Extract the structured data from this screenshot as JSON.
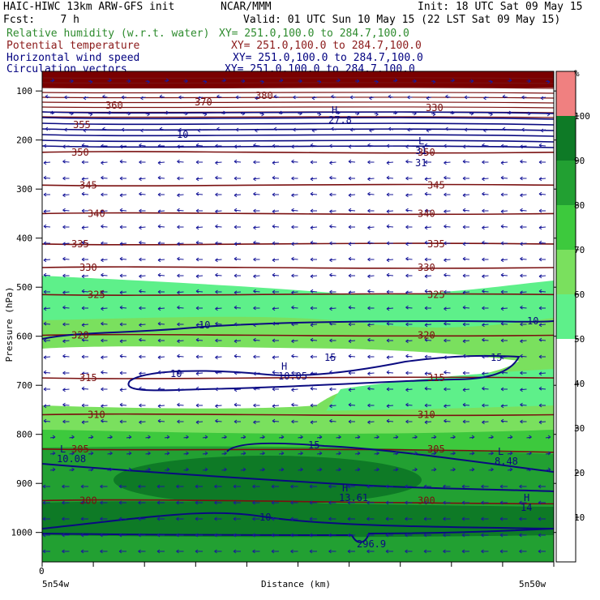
{
  "header": {
    "model": "HAIC-HIWC 13km ARW-GFS init",
    "center": "NCAR/MMM",
    "init": "Init: 18 UTC Sat 09 May 15",
    "fcst": "Fcst:    7 h",
    "valid": "Valid: 01 UTC Sun 10 May 15 (22 LST Sat 09 May 15)",
    "fields": [
      {
        "name": "Relative humidity (w.r.t. water)",
        "xy": "XY= 251.0,100.0 to 284.7,100.0",
        "color": "#2e8b2e"
      },
      {
        "name": "Potential temperature",
        "xy": "XY= 251.0,100.0 to 284.7,100.0",
        "color": "#8b1a1a"
      },
      {
        "name": "Horizontal wind speed",
        "xy": "XY= 251.0,100.0 to 284.7,100.0",
        "color": "#000080"
      },
      {
        "name": "Circulation vectors",
        "xy": "XY= 251.0,100.0 to 284.7,100.0",
        "color": "#000080"
      }
    ]
  },
  "chart_data": {
    "type": "heatmap",
    "xlabel": "Distance (km)",
    "ylabel": "Pressure (hPa)",
    "x_tick_zero": "0",
    "x_left_label": "5n54w",
    "x_right_label": "5n50w",
    "y_ticks": [
      100,
      200,
      300,
      400,
      500,
      600,
      700,
      800,
      900,
      1000
    ],
    "y_range": [
      60,
      1060
    ],
    "colorbar": {
      "unit": "%",
      "levels": [
        10,
        20,
        30,
        40,
        50,
        60,
        70,
        80,
        90,
        100
      ],
      "bands": [
        {
          "from": 50,
          "to": 60,
          "color": "#5ef08a"
        },
        {
          "from": 60,
          "to": 70,
          "color": "#7ae05e"
        },
        {
          "from": 70,
          "to": 80,
          "color": "#3dc93d"
        },
        {
          "from": 80,
          "to": 90,
          "color": "#22a032"
        },
        {
          "from": 90,
          "to": 100,
          "color": "#0e7a26"
        },
        {
          "from": 100,
          "to": 110,
          "color": "#f08080"
        }
      ]
    },
    "theta_contours": [
      {
        "label": "350",
        "p": 225
      },
      {
        "label": "345",
        "p": 292
      },
      {
        "label": "340",
        "p": 350
      },
      {
        "label": "335",
        "p": 412
      },
      {
        "label": "330",
        "p": 460
      },
      {
        "label": "325",
        "p": 515
      },
      {
        "label": "320",
        "p": 598
      },
      {
        "label": "315",
        "p": 685
      },
      {
        "label": "310",
        "p": 760
      },
      {
        "label": "305",
        "p": 830
      },
      {
        "label": "300",
        "p": 935
      }
    ],
    "theta_upper_labels": [
      "355",
      "360",
      "370",
      "380",
      "330"
    ],
    "wind_labels": [
      "10",
      "15",
      "10",
      "15",
      "15",
      "10",
      "10",
      "10",
      "31"
    ],
    "extrema": [
      {
        "letter": "H",
        "value": "10.05"
      },
      {
        "letter": "L",
        "value": "10.08"
      },
      {
        "letter": "L",
        "value": "8.48"
      },
      {
        "letter": "H",
        "value": "13.61"
      },
      {
        "letter": "H",
        "value": "14"
      },
      {
        "letter": "",
        "value": "296.9"
      },
      {
        "letter": "H",
        "value": "27.8"
      },
      {
        "letter": "L",
        "value": "31"
      }
    ]
  }
}
